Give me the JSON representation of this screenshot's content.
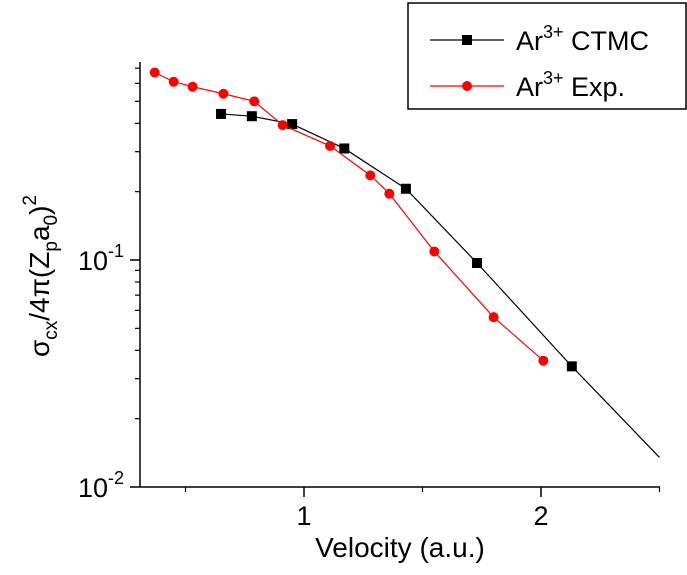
{
  "chart_data": {
    "type": "line",
    "xlabel": "Velocity (a.u.)",
    "ylabel_parts": {
      "sigma": "σ",
      "sigma_sub": "cx",
      "mid": "/4π(Z",
      "z_sub": "p",
      "a": "a",
      "a_sub": "0",
      "close": ")",
      "sup": "2"
    },
    "xlim": [
      0.35,
      2.5
    ],
    "ylim": [
      0.01,
      0.85
    ],
    "yscale": "log",
    "x_ticks": [
      {
        "value": 1,
        "label": "1"
      },
      {
        "value": 2,
        "label": "2"
      }
    ],
    "y_ticks": [
      {
        "value": 0.1,
        "base": "10",
        "exp": "-1"
      },
      {
        "value": 0.01,
        "base": "10",
        "exp": "-2"
      }
    ],
    "legend": {
      "position": "top-right",
      "entries": [
        {
          "ion": "Ar",
          "charge": "3+",
          "suffix": " CTMC"
        },
        {
          "ion": "Ar",
          "charge": "3+",
          "suffix": " Exp."
        }
      ]
    },
    "series": [
      {
        "name": "Ar3+ CTMC",
        "color": "#000000",
        "marker": "square",
        "x": [
          0.65,
          0.78,
          0.95,
          1.17,
          1.43,
          1.73,
          2.13
        ],
        "y": [
          0.44,
          0.43,
          0.397,
          0.31,
          0.206,
          0.097,
          0.034
        ],
        "line_extension": {
          "x": 2.5,
          "y": 0.0135
        }
      },
      {
        "name": "Ar3+ Exp.",
        "color": "#ff0000",
        "marker": "circle",
        "x": [
          0.37,
          0.45,
          0.53,
          0.66,
          0.79,
          0.91,
          1.11,
          1.28,
          1.36,
          1.55,
          1.8,
          2.01
        ],
        "y": [
          0.67,
          0.61,
          0.58,
          0.54,
          0.5,
          0.393,
          0.318,
          0.236,
          0.196,
          0.109,
          0.056,
          0.036
        ]
      }
    ]
  }
}
